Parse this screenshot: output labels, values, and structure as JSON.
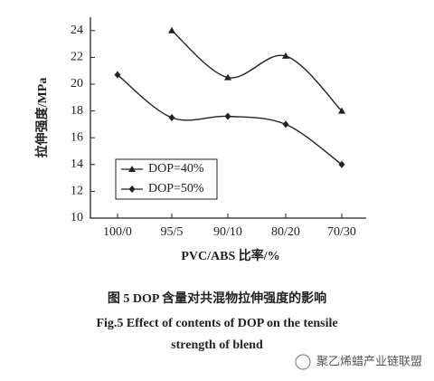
{
  "chart_data": {
    "type": "line",
    "x_label": "PVC/ABS 比率/%",
    "y_label": "拉伸强度/MPa",
    "categories": [
      "100/0",
      "95/5",
      "90/10",
      "80/20",
      "70/30"
    ],
    "series": [
      {
        "name": "DOP=40%",
        "color": "#222222",
        "marker": "triangle",
        "values": [
          null,
          24,
          20.5,
          22.1,
          18
        ]
      },
      {
        "name": "DOP=50%",
        "color": "#222222",
        "marker": "diamond",
        "values": [
          20.7,
          17.5,
          17.6,
          17,
          14
        ]
      }
    ],
    "ylim": [
      10,
      25
    ],
    "yticks": [
      10,
      12,
      14,
      16,
      18,
      20,
      22,
      24
    ],
    "legend": "lower left",
    "caption_cn": "图 5 DOP 含量对共混物拉伸强度的影响",
    "caption_en": [
      "Fig.5 Effect of contents of DOP on the tensile",
      "strength of blend"
    ],
    "watermark": "聚乙烯蜡产业链联盟"
  }
}
